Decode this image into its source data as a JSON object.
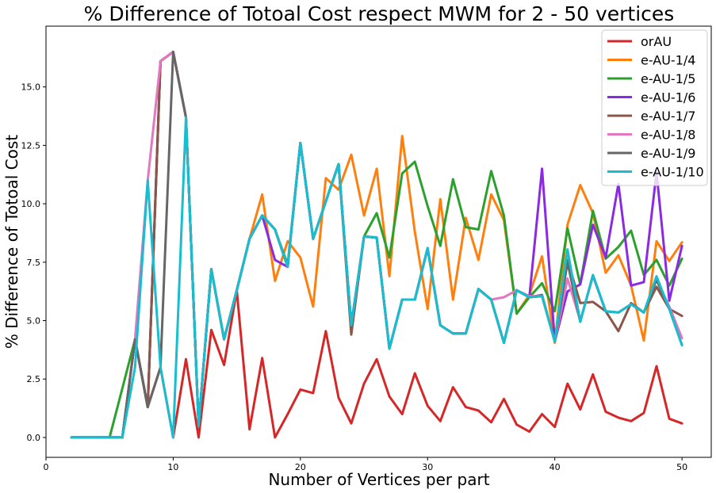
{
  "chart_data": {
    "type": "line",
    "title": "% Difference of Totoal Cost respect MWM for 2 - 50 vertices",
    "xlabel": "Number of Vertices per part",
    "ylabel": "% Difference of Totoal Cost",
    "xlim": [
      0,
      52.3
    ],
    "ylim": [
      -0.85,
      17.6
    ],
    "xticks": [
      0,
      10,
      20,
      30,
      40,
      50
    ],
    "yticks": [
      0.0,
      2.5,
      5.0,
      7.5,
      10.0,
      12.5,
      15.0
    ],
    "ytick_labels": [
      "0.0",
      "2.5",
      "5.0",
      "7.5",
      "10.0",
      "12.5",
      "15.0"
    ],
    "xtick_labels": [
      "0",
      "10",
      "20",
      "30",
      "40",
      "50"
    ],
    "grid": false,
    "legend_position": "top-right",
    "x": [
      2,
      3,
      4,
      5,
      6,
      7,
      8,
      9,
      10,
      11,
      12,
      13,
      14,
      15,
      16,
      17,
      18,
      19,
      20,
      21,
      22,
      23,
      24,
      25,
      26,
      27,
      28,
      29,
      30,
      31,
      32,
      33,
      34,
      35,
      36,
      37,
      38,
      39,
      40,
      41,
      42,
      43,
      44,
      45,
      46,
      47,
      48,
      49,
      50
    ],
    "series": [
      {
        "name": "orAU",
        "color": "#d62728",
        "values": [
          0,
          0,
          0,
          0,
          0,
          4.2,
          1.3,
          3.0,
          0,
          3.35,
          0,
          4.6,
          3.1,
          6.3,
          0.35,
          3.4,
          0,
          1.0,
          2.05,
          1.9,
          4.55,
          1.7,
          0.6,
          2.3,
          3.35,
          1.75,
          1.0,
          2.75,
          1.35,
          0.7,
          2.15,
          1.3,
          1.15,
          0.65,
          1.65,
          0.55,
          0.25,
          1.0,
          0.45,
          2.3,
          1.2,
          2.7,
          1.1,
          0.85,
          0.7,
          1.05,
          3.05,
          0.8,
          0.6
        ]
      },
      {
        "name": "e-AU-1/4",
        "color": "#ff7f0e",
        "values": [
          0,
          0,
          0,
          0,
          0,
          4.2,
          1.3,
          16.1,
          16.5,
          13.7,
          0.5,
          7.2,
          4.2,
          6.3,
          8.5,
          10.4,
          6.7,
          8.4,
          7.7,
          5.6,
          11.1,
          10.6,
          12.1,
          9.5,
          11.5,
          6.9,
          12.9,
          8.8,
          5.5,
          10.2,
          5.9,
          9.4,
          7.6,
          10.4,
          9.3,
          5.3,
          6.1,
          7.75,
          4.05,
          9.1,
          10.8,
          9.6,
          7.05,
          7.8,
          6.5,
          4.15,
          8.4,
          7.55,
          8.35
        ]
      },
      {
        "name": "e-AU-1/5",
        "color": "#2ca02c",
        "values": [
          0,
          0,
          0,
          0,
          2.1,
          4.2,
          1.3,
          16.1,
          16.5,
          13.7,
          0.5,
          7.2,
          4.2,
          6.3,
          8.5,
          9.5,
          8.9,
          7.4,
          12.6,
          8.5,
          10.1,
          11.7,
          4.8,
          8.6,
          9.6,
          7.7,
          11.3,
          11.8,
          9.9,
          8.2,
          11.05,
          9.0,
          8.9,
          11.4,
          9.5,
          5.3,
          6.0,
          6.6,
          5.4,
          8.95,
          6.55,
          9.7,
          7.65,
          8.15,
          8.85,
          6.95,
          7.6,
          6.5,
          7.65
        ]
      },
      {
        "name": "e-AU-1/6",
        "color": "#8a2be2",
        "values": [
          0,
          0,
          0,
          0,
          0,
          4.2,
          1.3,
          16.1,
          16.5,
          13.7,
          0.5,
          7.2,
          4.2,
          6.3,
          8.5,
          9.5,
          7.6,
          7.3,
          12.6,
          8.5,
          10.1,
          11.7,
          4.8,
          8.6,
          8.55,
          3.8,
          5.9,
          5.9,
          8.1,
          4.8,
          4.45,
          4.45,
          6.35,
          5.9,
          4.05,
          6.3,
          6.0,
          11.5,
          4.1,
          6.25,
          6.55,
          9.1,
          7.7,
          10.85,
          6.5,
          6.65,
          11.35,
          5.85,
          8.2
        ]
      },
      {
        "name": "e-AU-1/7",
        "color": "#8c564b",
        "values": [
          0,
          0,
          0,
          0,
          0,
          4.2,
          1.3,
          16.1,
          16.5,
          13.7,
          0.5,
          7.2,
          4.2,
          6.3,
          8.5,
          9.5,
          8.9,
          7.3,
          12.6,
          8.5,
          10.1,
          11.7,
          4.4,
          8.6,
          8.55,
          3.8,
          5.9,
          5.9,
          8.1,
          4.8,
          4.45,
          4.45,
          6.35,
          5.9,
          4.05,
          6.3,
          6.0,
          6.1,
          4.1,
          7.6,
          5.75,
          5.8,
          5.4,
          4.55,
          5.75,
          5.35,
          6.45,
          5.5,
          5.2
        ]
      },
      {
        "name": "e-AU-1/8",
        "color": "#e377c2",
        "values": [
          0,
          0,
          0,
          0,
          0,
          4.2,
          11.0,
          16.1,
          16.5,
          13.7,
          0.5,
          7.2,
          4.2,
          6.3,
          8.5,
          9.5,
          8.9,
          7.3,
          12.6,
          8.5,
          10.1,
          11.7,
          4.8,
          8.6,
          8.55,
          3.8,
          5.9,
          5.9,
          8.1,
          4.8,
          4.45,
          4.45,
          6.35,
          5.9,
          6.0,
          6.3,
          6.05,
          6.05,
          4.1,
          6.8,
          5.0,
          6.9,
          5.4,
          5.35,
          5.7,
          5.35,
          6.75,
          5.6,
          4.25
        ]
      },
      {
        "name": "e-AU-1/9",
        "color": "#666666",
        "values": [
          0,
          0,
          0,
          0,
          0,
          4.2,
          1.3,
          3.0,
          16.5,
          13.7,
          0.5,
          7.2,
          4.2,
          6.3,
          8.5,
          9.5,
          8.9,
          7.3,
          12.6,
          8.5,
          10.1,
          11.7,
          4.8,
          8.6,
          8.55,
          3.8,
          5.9,
          5.9,
          8.1,
          4.8,
          4.45,
          4.45,
          6.35,
          5.9,
          4.05,
          6.3,
          6.0,
          6.05,
          4.1,
          7.5,
          4.95,
          6.95,
          5.4,
          5.35,
          5.7,
          5.35,
          6.75,
          5.5,
          3.95
        ]
      },
      {
        "name": "e-AU-1/10",
        "color": "#17becf",
        "values": [
          0,
          0,
          0,
          0,
          0,
          3.0,
          11.0,
          3.0,
          0,
          13.7,
          0.5,
          7.2,
          4.2,
          6.3,
          8.5,
          9.5,
          8.9,
          7.3,
          12.6,
          8.5,
          10.1,
          11.7,
          4.8,
          8.6,
          8.55,
          3.8,
          5.9,
          5.9,
          8.1,
          4.8,
          4.45,
          4.45,
          6.35,
          5.9,
          4.05,
          6.3,
          6.0,
          6.05,
          4.1,
          8.05,
          4.95,
          6.95,
          5.4,
          5.35,
          5.7,
          5.35,
          6.9,
          5.5,
          3.95
        ]
      }
    ]
  }
}
